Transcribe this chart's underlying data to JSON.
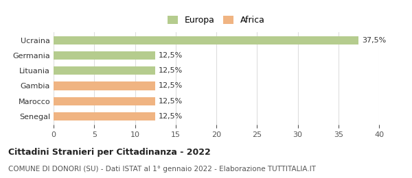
{
  "categories": [
    "Senegal",
    "Marocco",
    "Gambia",
    "Lituania",
    "Germania",
    "Ucraina"
  ],
  "values": [
    12.5,
    12.5,
    12.5,
    12.5,
    12.5,
    37.5
  ],
  "colors": [
    "#f0b482",
    "#f0b482",
    "#f0b482",
    "#b5cc8e",
    "#b5cc8e",
    "#b5cc8e"
  ],
  "legend": [
    {
      "label": "Europa",
      "color": "#b5cc8e"
    },
    {
      "label": "Africa",
      "color": "#f0b482"
    }
  ],
  "value_labels": [
    "12,5%",
    "12,5%",
    "12,5%",
    "12,5%",
    "12,5%",
    "37,5%"
  ],
  "xlim": [
    0,
    40
  ],
  "xticks": [
    0,
    5,
    10,
    15,
    20,
    25,
    30,
    35,
    40
  ],
  "title": "Cittadini Stranieri per Cittadinanza - 2022",
  "subtitle": "COMUNE DI DONORI (SU) - Dati ISTAT al 1° gennaio 2022 - Elaborazione TUTTITALIA.IT",
  "background_color": "#ffffff",
  "grid_color": "#dddddd"
}
